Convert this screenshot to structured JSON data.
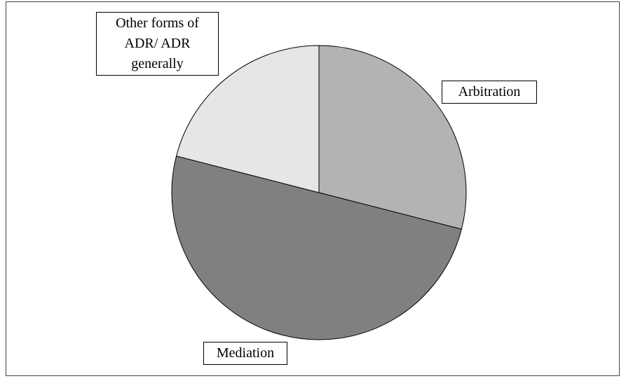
{
  "chart_data": {
    "type": "pie",
    "categories": [
      "Arbitration",
      "Mediation",
      "Other forms of ADR/ ADR generally"
    ],
    "values": [
      29,
      50,
      21
    ],
    "colors": [
      "#b3b3b3",
      "#808080",
      "#e6e6e6"
    ]
  }
}
